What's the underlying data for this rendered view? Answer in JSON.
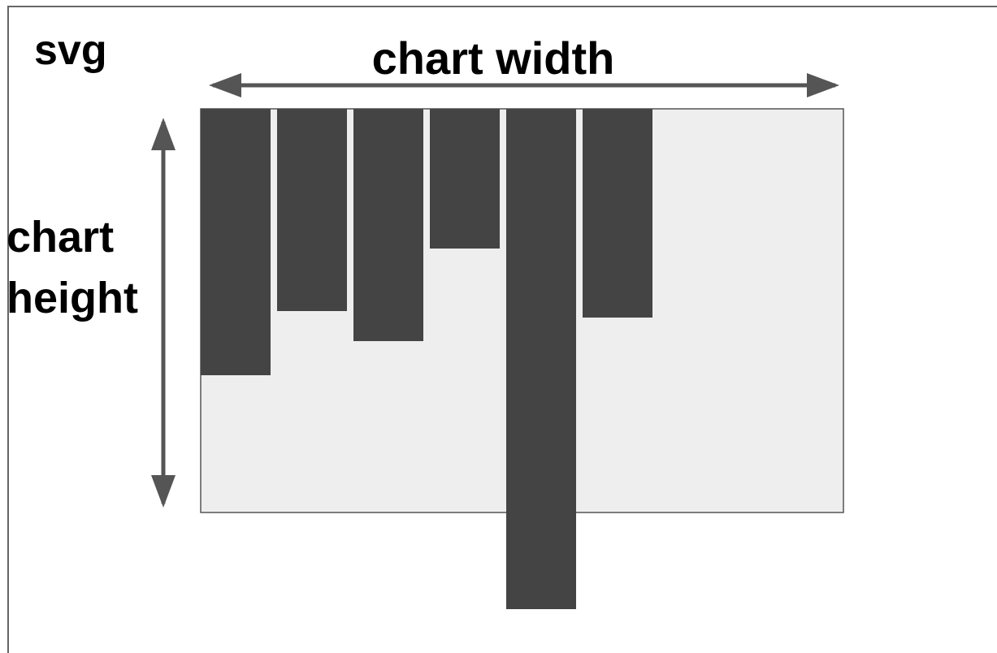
{
  "labels": {
    "svg": "svg",
    "chart_width": "chart width",
    "chart_height": [
      "chart",
      "height"
    ]
  }
}
